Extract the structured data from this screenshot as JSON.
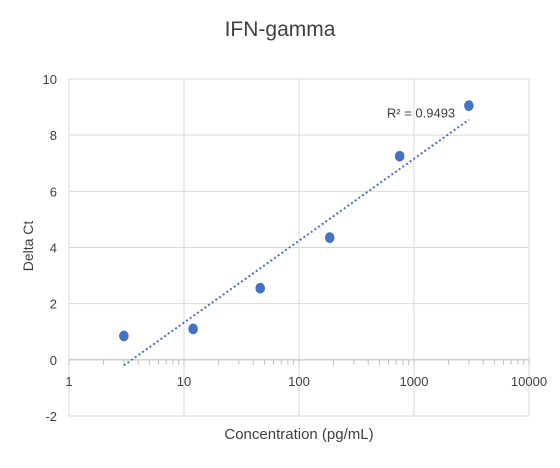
{
  "chart_data": {
    "type": "scatter",
    "title": "IFN-gamma",
    "xlabel": "Concentration (pg/mL)",
    "ylabel": "Delta Ct",
    "x_scale": "log",
    "xlim": [
      1,
      10000
    ],
    "ylim": [
      -2,
      10
    ],
    "x_ticks": [
      "1",
      "10",
      "100",
      "1000",
      "10000"
    ],
    "y_ticks": [
      "-2",
      "0",
      "2",
      "4",
      "6",
      "8",
      "10"
    ],
    "grid": true,
    "legend": "none",
    "colors": {
      "points": "#4472c4",
      "trendline": "#4472c4",
      "grid": "#d9d9d9"
    },
    "series": [
      {
        "x": [
          3,
          12,
          46,
          185,
          750,
          3000
        ],
        "y": [
          0.85,
          1.1,
          2.55,
          4.35,
          7.25,
          9.05
        ]
      }
    ],
    "trendline": {
      "type": "logarithmic",
      "x_range": [
        3,
        3000
      ],
      "y_range": [
        -0.2,
        8.55
      ],
      "annotation": "R² = 0.9493"
    }
  }
}
